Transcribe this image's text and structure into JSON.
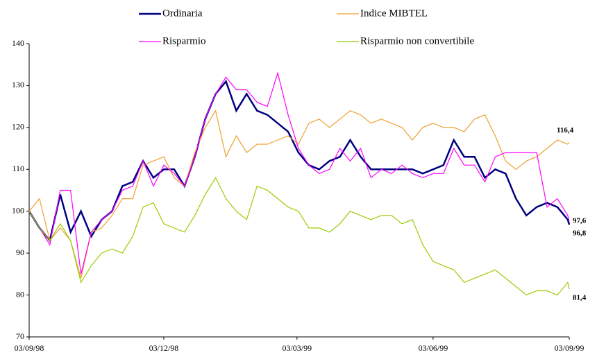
{
  "chart_data": {
    "type": "line",
    "x": [
      "03/09/98",
      "10/09/98",
      "17/09/98",
      "24/09/98",
      "01/10/98",
      "08/10/98",
      "15/10/98",
      "22/10/98",
      "29/10/98",
      "05/11/98",
      "12/11/98",
      "19/11/98",
      "26/11/98",
      "03/12/98",
      "10/12/98",
      "17/12/98",
      "24/12/98",
      "31/12/98",
      "07/01/99",
      "14/01/99",
      "21/01/99",
      "28/01/99",
      "04/02/99",
      "11/02/99",
      "18/02/99",
      "25/02/99",
      "04/03/99",
      "11/03/99",
      "18/03/99",
      "25/03/99",
      "01/04/99",
      "08/04/99",
      "15/04/99",
      "22/04/99",
      "29/04/99",
      "06/05/99",
      "13/05/99",
      "20/05/99",
      "27/05/99",
      "03/06/99",
      "10/06/99",
      "17/06/99",
      "24/06/99",
      "01/07/99",
      "08/07/99",
      "15/07/99",
      "22/07/99",
      "29/07/99",
      "05/08/99",
      "12/08/99",
      "19/08/99",
      "26/08/99",
      "02/09/99",
      "03/09/99"
    ],
    "series": [
      {
        "name": "Ordinaria",
        "color": "#000080",
        "values": [
          100,
          96,
          93,
          104,
          95,
          100,
          94,
          98,
          100,
          106,
          107,
          112,
          108,
          110,
          110,
          106,
          113,
          122,
          128,
          131,
          124,
          128,
          124,
          123,
          121,
          119,
          114,
          111,
          110,
          112,
          113,
          117,
          113,
          110,
          110,
          110,
          110,
          110,
          109,
          110,
          111,
          117,
          113,
          113,
          108,
          110,
          109,
          103,
          99,
          101,
          102,
          101,
          98,
          96.8
        ],
        "value_labels": [
          null,
          null,
          null,
          null,
          null,
          null,
          null,
          null,
          null,
          null,
          null,
          null,
          null,
          null,
          null,
          null,
          null,
          null,
          null,
          null,
          null,
          null,
          null,
          null,
          null,
          null,
          null,
          null,
          null,
          null,
          null,
          null,
          null,
          null,
          null,
          null,
          null,
          null,
          null,
          null,
          null,
          null,
          null,
          null,
          null,
          null,
          null,
          null,
          null,
          null,
          null,
          null,
          null,
          "96,8"
        ]
      },
      {
        "name": "Indice MIBTEL",
        "color": "#f0a030",
        "values": [
          100,
          103,
          93,
          96,
          93,
          84,
          95,
          96,
          99,
          103,
          103,
          111,
          112,
          113,
          108,
          106,
          114,
          120,
          124,
          113,
          118,
          114,
          116,
          116,
          117,
          118,
          116,
          121,
          122,
          120,
          122,
          124,
          123,
          121,
          122,
          121,
          120,
          117,
          120,
          121,
          120,
          120,
          119,
          122,
          123,
          118,
          112,
          110,
          112,
          113,
          115,
          117,
          116,
          116.4
        ],
        "value_labels": [
          null,
          null,
          null,
          null,
          null,
          null,
          null,
          null,
          null,
          null,
          null,
          null,
          null,
          null,
          null,
          null,
          null,
          null,
          null,
          null,
          null,
          null,
          null,
          null,
          null,
          null,
          null,
          null,
          null,
          null,
          null,
          null,
          null,
          null,
          null,
          null,
          null,
          null,
          null,
          null,
          null,
          null,
          null,
          null,
          null,
          null,
          null,
          null,
          null,
          null,
          null,
          null,
          null,
          "116,4"
        ]
      },
      {
        "name": "Risparmio",
        "color": "#ff00ff",
        "values": [
          100,
          96,
          92,
          105,
          105,
          85,
          95,
          98,
          100,
          105,
          106,
          112,
          106,
          111,
          109,
          106,
          113,
          122,
          128,
          132,
          129,
          129,
          126,
          125,
          133,
          123,
          115,
          111,
          109,
          110,
          115,
          112,
          115,
          108,
          110,
          109,
          111,
          109,
          108,
          109,
          109,
          115,
          111,
          111,
          107,
          113,
          114,
          114,
          114,
          114,
          101,
          103,
          99,
          97.6
        ],
        "value_labels": [
          null,
          null,
          null,
          null,
          null,
          null,
          null,
          null,
          null,
          null,
          null,
          null,
          null,
          null,
          null,
          null,
          null,
          null,
          null,
          null,
          null,
          null,
          null,
          null,
          null,
          null,
          null,
          null,
          null,
          null,
          null,
          null,
          null,
          null,
          null,
          null,
          null,
          null,
          null,
          null,
          null,
          null,
          null,
          null,
          null,
          null,
          null,
          null,
          null,
          null,
          null,
          null,
          null,
          "97,6"
        ]
      },
      {
        "name": "Risparmio non convertibile",
        "color": "#99cc00",
        "values": [
          100,
          96,
          93,
          97,
          93,
          83,
          87,
          90,
          91,
          90,
          94,
          101,
          102,
          97,
          96,
          95,
          99,
          104,
          108,
          103,
          100,
          98,
          106,
          105,
          103,
          101,
          100,
          96,
          96,
          95,
          97,
          100,
          99,
          98,
          99,
          99,
          97,
          98,
          92,
          88,
          87,
          86,
          83,
          84,
          85,
          86,
          84,
          82,
          80,
          81,
          81,
          80,
          83,
          81.4
        ],
        "value_labels": [
          null,
          null,
          null,
          null,
          null,
          null,
          null,
          null,
          null,
          null,
          null,
          null,
          null,
          null,
          null,
          null,
          null,
          null,
          null,
          null,
          null,
          null,
          null,
          null,
          null,
          null,
          null,
          null,
          null,
          null,
          null,
          null,
          null,
          null,
          null,
          null,
          null,
          null,
          null,
          null,
          null,
          null,
          null,
          null,
          null,
          null,
          null,
          null,
          null,
          null,
          null,
          null,
          null,
          "81,4"
        ]
      }
    ],
    "xlim": [
      "03/09/98",
      "03/09/99"
    ],
    "xticks": [
      "03/09/98",
      "03/12/98",
      "03/03/99",
      "03/06/99",
      "03/09/99"
    ],
    "ylim": [
      70,
      140
    ],
    "yticks": [
      70,
      80,
      90,
      100,
      110,
      120,
      130,
      140
    ],
    "grid": false
  }
}
